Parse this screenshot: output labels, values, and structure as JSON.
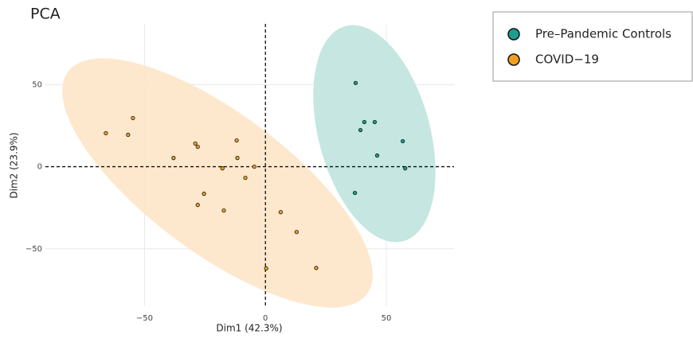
{
  "chart_data": {
    "type": "scatter",
    "title": "PCA",
    "x_label": "Dim1 (42.3%)",
    "y_label": "Dim2 (23.9%)",
    "xlim": [
      -91,
      78
    ],
    "ylim": [
      -85,
      87
    ],
    "xticks": [
      {
        "value": -50,
        "label": "−50"
      },
      0,
      50
    ],
    "yticks": [
      {
        "value": -50,
        "label": "−50"
      },
      0,
      50
    ],
    "grid": true,
    "series": [
      {
        "name": "Pre–Pandemic Controls",
        "color": "#1b9e8f",
        "x": [
          37.3,
          40.9,
          45.2,
          39.3,
          56.8,
          46.2,
          57.8,
          37
        ],
        "y": [
          51,
          27.2,
          27.2,
          22.3,
          15.5,
          6.8,
          -1,
          -16
        ]
      },
      {
        "name": "COVID−19",
        "color": "#f0a020",
        "x": [
          -66,
          -54.8,
          -56.8,
          -38,
          -29,
          -28,
          -11.9,
          -11.6,
          -17.8,
          -4.6,
          -8.3,
          -25.4,
          -28,
          -17.2,
          6.3,
          12.9,
          0.3,
          21
        ],
        "y": [
          20.4,
          29.6,
          19.4,
          5.3,
          14.1,
          12.1,
          16,
          5.3,
          -1,
          0,
          -6.8,
          -16.5,
          -23.3,
          -26.7,
          -27.7,
          -39.8,
          -62,
          -61.7
        ]
      }
    ]
  }
}
